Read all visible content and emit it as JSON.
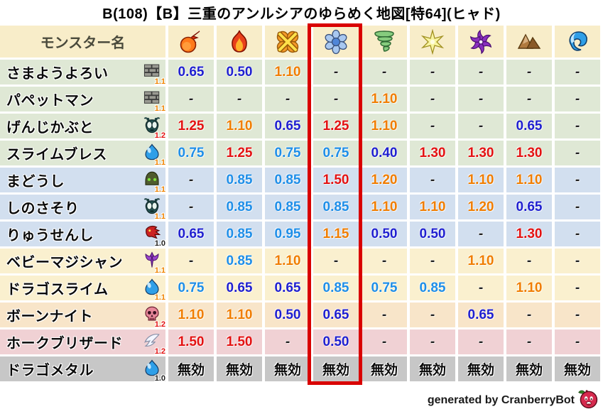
{
  "title": "B(108)【B】三重のアンルシアのゆらめく地図[特64](ヒャド)",
  "table": {
    "name_header": "モンスター名",
    "elements": [
      {
        "icon": "fireball-icon"
      },
      {
        "icon": "flame-icon"
      },
      {
        "icon": "explosion-icon"
      },
      {
        "icon": "ice-icon"
      },
      {
        "icon": "wind-icon"
      },
      {
        "icon": "light-icon"
      },
      {
        "icon": "dark-icon"
      },
      {
        "icon": "earth-icon"
      },
      {
        "icon": "water-icon"
      }
    ],
    "highlighted_element_index": 3,
    "rows": [
      {
        "name": "さまようよろい",
        "icon": "brick-icon",
        "weight": "1.1",
        "group": "green",
        "values": [
          "0.65",
          "0.50",
          "1.10",
          "-",
          "-",
          "-",
          "-",
          "-",
          "-"
        ]
      },
      {
        "name": "パペットマン",
        "icon": "brick-icon",
        "weight": "1.1",
        "group": "green",
        "values": [
          "-",
          "-",
          "-",
          "-",
          "1.10",
          "-",
          "-",
          "-",
          "-"
        ]
      },
      {
        "name": "げんじかぶと",
        "icon": "insect-icon",
        "weight": "1.2",
        "group": "green",
        "values": [
          "1.25",
          "1.10",
          "0.65",
          "1.25",
          "1.10",
          "-",
          "-",
          "0.65",
          "-"
        ]
      },
      {
        "name": "スライムブレス",
        "icon": "slime-icon",
        "weight": "1.1",
        "group": "green",
        "values": [
          "0.75",
          "1.25",
          "0.75",
          "0.75",
          "0.40",
          "1.30",
          "1.30",
          "1.30",
          "-"
        ]
      },
      {
        "name": "まどうし",
        "icon": "mage-icon",
        "weight": "1.1",
        "group": "blue",
        "values": [
          "-",
          "0.85",
          "0.85",
          "1.50",
          "1.20",
          "-",
          "1.10",
          "1.10",
          "-"
        ]
      },
      {
        "name": "しのさそり",
        "icon": "insect-icon",
        "weight": "1.1",
        "group": "blue",
        "values": [
          "-",
          "0.85",
          "0.85",
          "0.85",
          "1.10",
          "1.10",
          "1.20",
          "0.65",
          "-"
        ]
      },
      {
        "name": "りゅうせんし",
        "icon": "dragon-icon",
        "weight": "1.0",
        "group": "blue",
        "values": [
          "0.65",
          "0.85",
          "0.95",
          "1.15",
          "0.50",
          "0.50",
          "-",
          "1.30",
          "-"
        ]
      },
      {
        "name": "ベビーマジシャン",
        "icon": "trident-icon",
        "weight": "1.1",
        "group": "cream",
        "values": [
          "-",
          "0.85",
          "1.10",
          "-",
          "-",
          "-",
          "1.10",
          "-",
          "-"
        ]
      },
      {
        "name": "ドラゴスライム",
        "icon": "slime-icon",
        "weight": "1.1",
        "group": "cream",
        "values": [
          "0.75",
          "0.65",
          "0.65",
          "0.85",
          "0.75",
          "0.85",
          "-",
          "1.10",
          "-"
        ]
      },
      {
        "name": "ボーンナイト",
        "icon": "skull-icon",
        "weight": "1.2",
        "group": "peach",
        "values": [
          "1.10",
          "1.10",
          "0.50",
          "0.65",
          "-",
          "-",
          "0.65",
          "-",
          "-"
        ]
      },
      {
        "name": "ホークブリザード",
        "icon": "wing-icon",
        "weight": "1.2",
        "group": "pink",
        "values": [
          "1.50",
          "1.50",
          "-",
          "0.50",
          "-",
          "-",
          "-",
          "-",
          "-"
        ]
      },
      {
        "name": "ドラゴメタル",
        "icon": "slime-icon",
        "weight": "1.0",
        "group": "gray",
        "values": [
          "無効",
          "無効",
          "無効",
          "無効",
          "無効",
          "無効",
          "無効",
          "無効",
          "無効"
        ]
      }
    ],
    "null_value_label": "無効",
    "dash_label": "-"
  },
  "footer": {
    "credit": "generated by CranberryBot",
    "icon": "cranberry-icon"
  },
  "colors": {
    "header_bg": "#f8edc9",
    "row_green": "#dfe8d5",
    "row_blue": "#d2dfef",
    "row_cream": "#faf0cf",
    "row_peach": "#f8e5c9",
    "row_pink": "#f0d1d4",
    "row_gray": "#c7c7c7",
    "value_strong_resist": "#1f1fd0",
    "value_resist": "#1e8ee8",
    "value_weak": "#f07d00",
    "value_very_weak": "#e31212",
    "value_dash": "#222222",
    "weight_1_0": "#222222",
    "weight_1_1": "#f08300",
    "weight_1_2": "#e31212",
    "highlight_box": "#d90000"
  }
}
